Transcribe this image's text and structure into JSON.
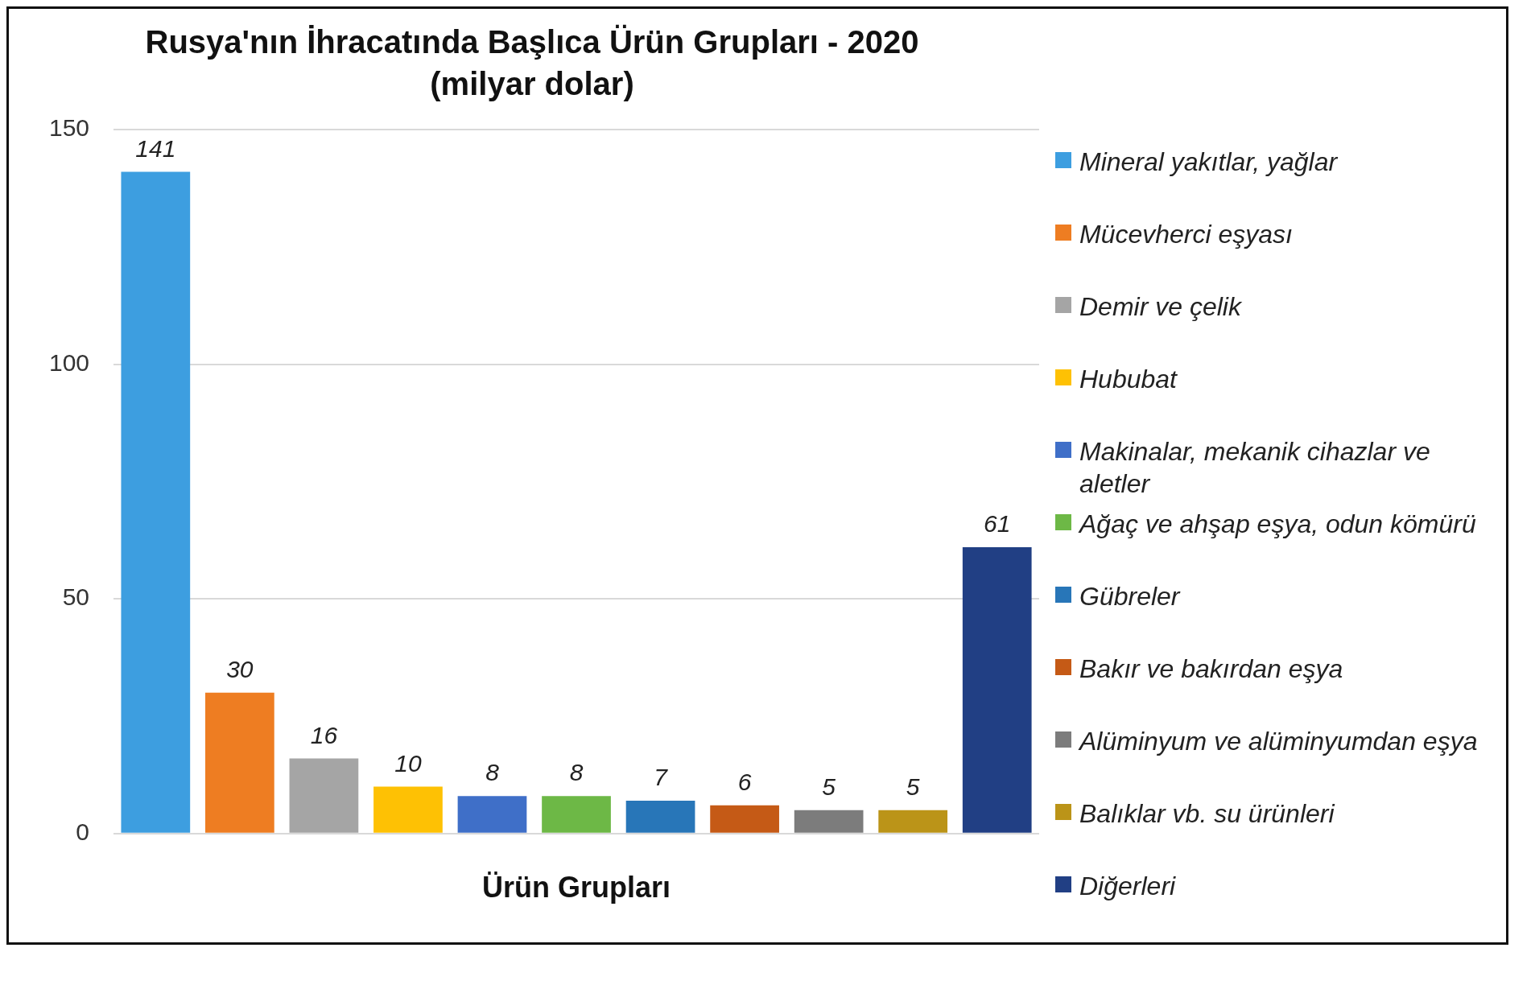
{
  "chart_data": {
    "type": "bar",
    "title": "Rusya'nın İhracatında Başlıca Ürün Grupları - 2020",
    "subtitle": "(milyar dolar)",
    "xlabel": "Ürün Grupları",
    "categories": [
      null,
      null,
      null,
      null,
      null,
      null,
      null,
      null,
      null,
      null,
      null
    ],
    "series": [
      {
        "name": "Mineral yakıtlar, yağlar",
        "color": "#3d9ee0",
        "values": [
          141,
          null,
          null,
          null,
          null,
          null,
          null,
          null,
          null,
          null,
          null
        ]
      },
      {
        "name": "Mücevherci eşyası",
        "color": "#ee7d22",
        "values": [
          null,
          30,
          null,
          null,
          null,
          null,
          null,
          null,
          null,
          null,
          null
        ]
      },
      {
        "name": "Demir ve çelik",
        "color": "#a5a5a5",
        "values": [
          null,
          null,
          16,
          null,
          null,
          null,
          null,
          null,
          null,
          null,
          null
        ]
      },
      {
        "name": "Hububat",
        "color": "#fec104",
        "values": [
          null,
          null,
          null,
          10,
          null,
          null,
          null,
          null,
          null,
          null,
          null
        ]
      },
      {
        "name": "Makinalar, mekanik cihazlar ve aletler",
        "color": "#3f6fc8",
        "values": [
          null,
          null,
          null,
          null,
          8,
          null,
          null,
          null,
          null,
          null,
          null
        ]
      },
      {
        "name": "Ağaç ve ahşap eşya, odun kömürü",
        "color": "#6db846",
        "values": [
          null,
          null,
          null,
          null,
          null,
          8,
          null,
          null,
          null,
          null,
          null
        ]
      },
      {
        "name": "Gübreler",
        "color": "#2876b8",
        "values": [
          null,
          null,
          null,
          null,
          null,
          null,
          7,
          null,
          null,
          null,
          null
        ]
      },
      {
        "name": "Bakır ve bakırdan eşya",
        "color": "#c55a16",
        "values": [
          null,
          null,
          null,
          null,
          null,
          null,
          null,
          6,
          null,
          null,
          null
        ]
      },
      {
        "name": "Alüminyum ve alüminyumdan eşya",
        "color": "#7c7c7c",
        "values": [
          null,
          null,
          null,
          null,
          null,
          null,
          null,
          null,
          5,
          null,
          null
        ]
      },
      {
        "name": "Balıklar vb. su ürünleri",
        "color": "#bb9418",
        "values": [
          null,
          null,
          null,
          null,
          null,
          null,
          null,
          null,
          null,
          5,
          null
        ]
      },
      {
        "name": "Diğerleri",
        "color": "#213f84",
        "values": [
          null,
          null,
          null,
          null,
          null,
          null,
          null,
          null,
          null,
          null,
          61
        ]
      }
    ],
    "ylim": [
      0,
      150
    ],
    "yticks": [
      0,
      50,
      100,
      150
    ],
    "grid": "y",
    "legend": "right",
    "tick_labels": "y",
    "data_labels": true
  }
}
